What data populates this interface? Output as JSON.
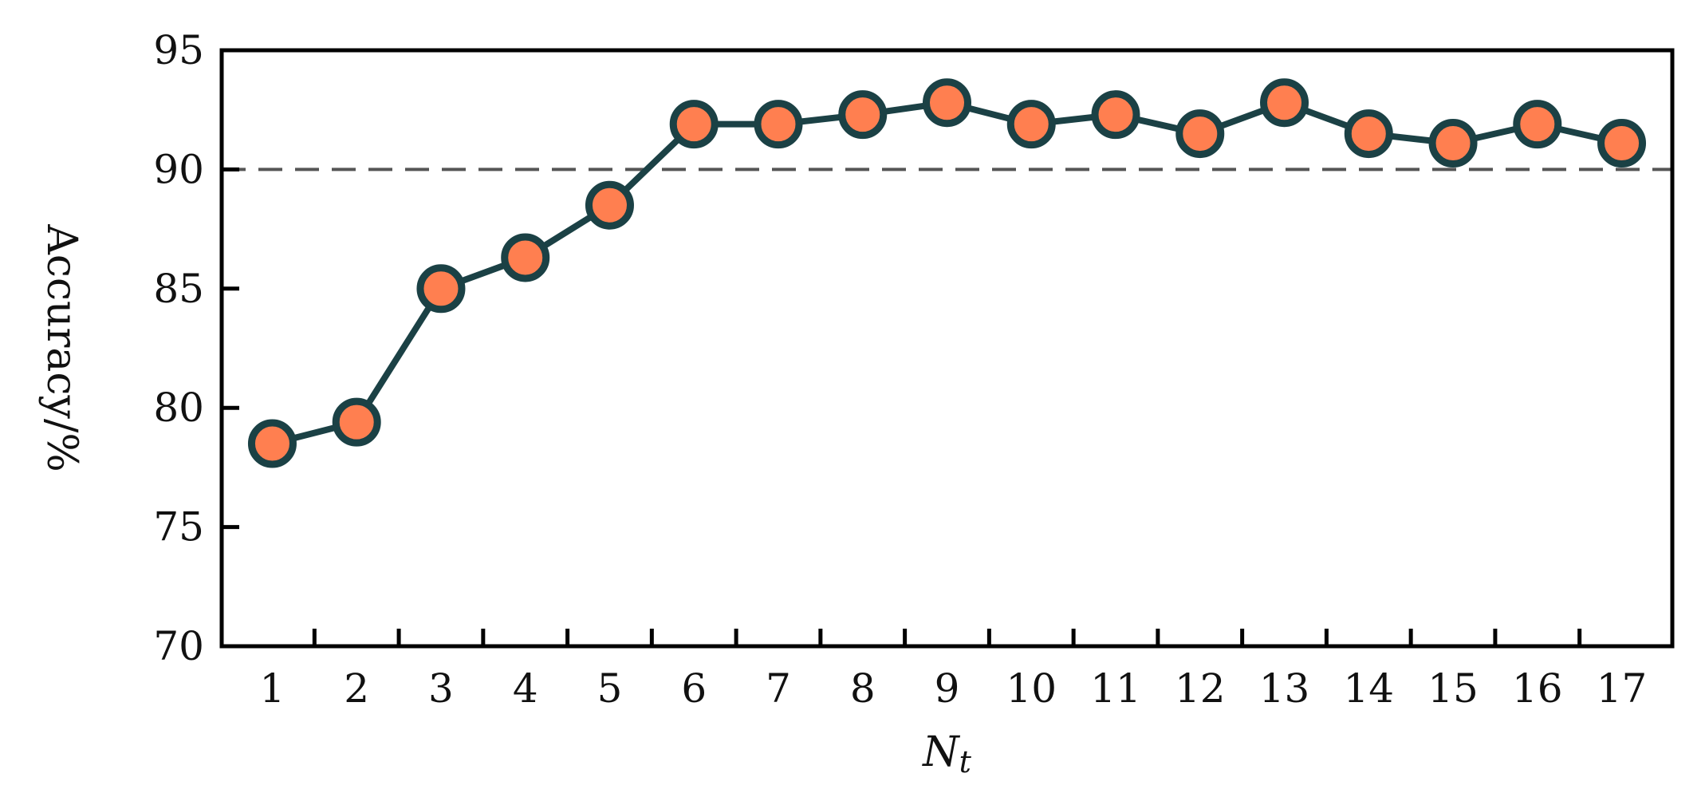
{
  "chart_data": {
    "type": "line",
    "x": [
      1,
      2,
      3,
      4,
      5,
      6,
      7,
      8,
      9,
      10,
      11,
      12,
      13,
      14,
      15,
      16,
      17
    ],
    "series": [
      {
        "values": [
          78.5,
          79.4,
          85.0,
          86.3,
          88.5,
          91.9,
          91.9,
          92.3,
          92.8,
          91.9,
          92.3,
          91.5,
          92.8,
          91.5,
          91.1,
          91.9,
          91.1
        ]
      }
    ],
    "reference_line": {
      "y": 90,
      "style": "dashed"
    },
    "xlabel": "N",
    "xlabel_subscript": "t",
    "ylabel": "Accuracy/%",
    "xlim": [
      0.4,
      17.6
    ],
    "ylim": [
      70,
      95
    ],
    "y_ticks": [
      70,
      75,
      80,
      85,
      90,
      95
    ],
    "x_ticks": [
      1,
      2,
      3,
      4,
      5,
      6,
      7,
      8,
      9,
      10,
      11,
      12,
      13,
      14,
      15,
      16,
      17
    ],
    "grid": false,
    "colors": {
      "line": "#1b4145",
      "marker_fill": "#ff7f50",
      "marker_edge": "#1b4145",
      "reference_line": "#555555",
      "axes": "#000000"
    }
  }
}
